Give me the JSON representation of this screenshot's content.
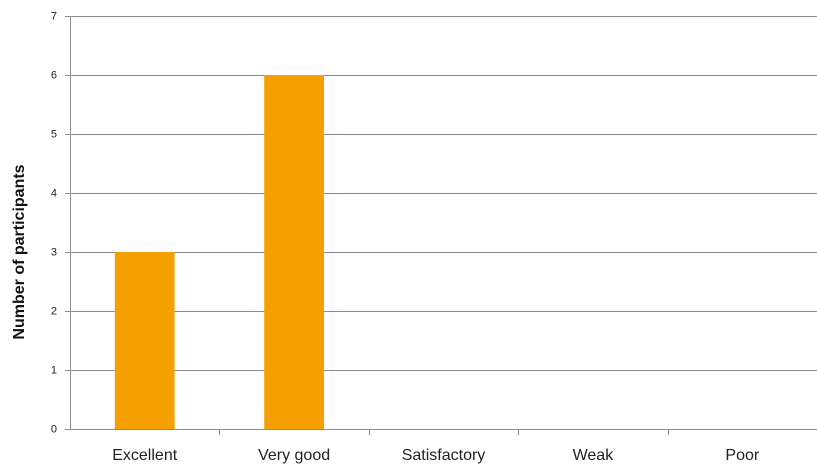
{
  "chart_data": {
    "type": "bar",
    "title": "",
    "xlabel": "",
    "ylabel": "Number of participants",
    "categories": [
      "Excellent",
      "Very good",
      "Satisfactory",
      "Weak",
      "Poor"
    ],
    "values": [
      3,
      6,
      0,
      0,
      0
    ],
    "ylim": [
      0,
      7
    ],
    "yticks": [
      "0",
      "1",
      "2",
      "3",
      "4",
      "5",
      "6",
      "7"
    ],
    "grid": true,
    "legend": "none",
    "bar_color": "#f5a000"
  }
}
